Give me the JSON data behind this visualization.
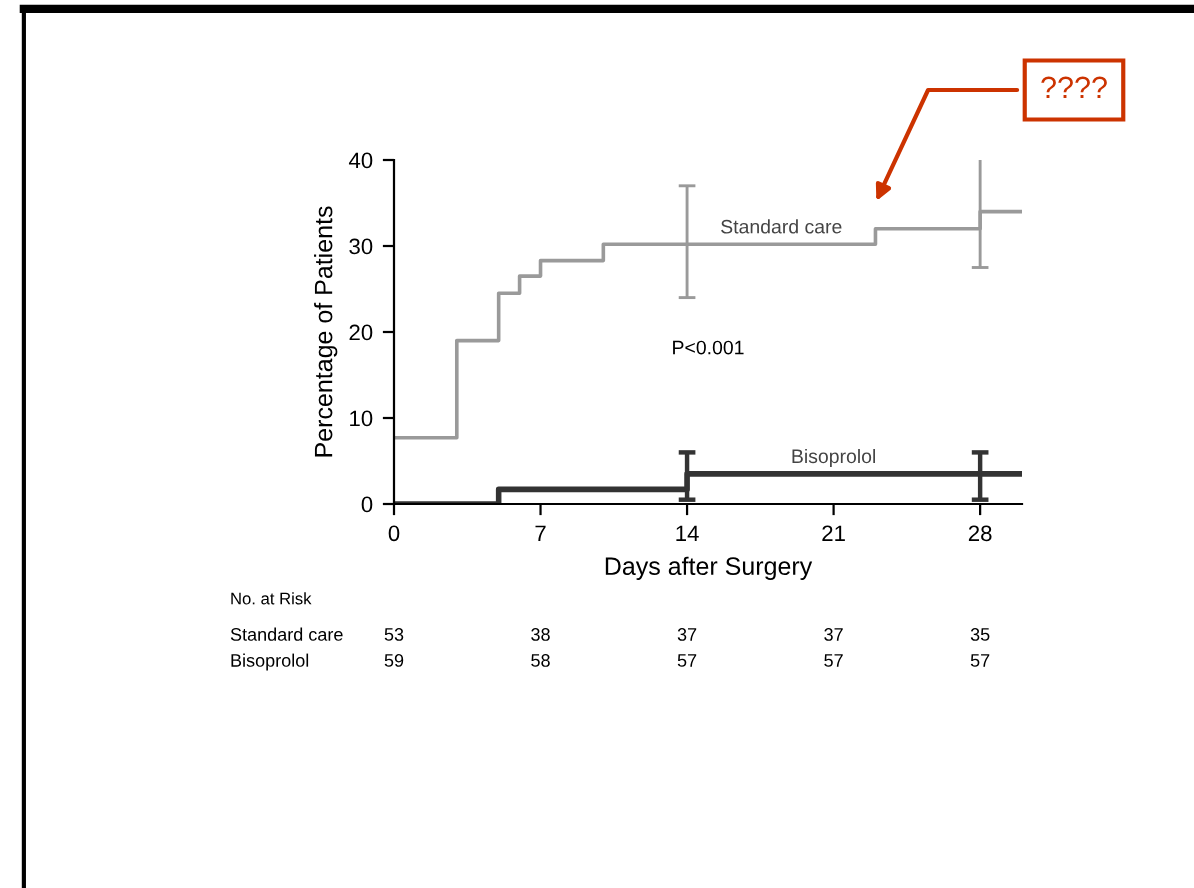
{
  "chart_data": {
    "type": "step",
    "xlabel": "Days after Surgery",
    "ylabel": "Percentage of Patients",
    "xlim": [
      0,
      30
    ],
    "xticks": [
      0,
      7,
      14,
      21,
      28
    ],
    "ylim": [
      0,
      40
    ],
    "yticks": [
      0,
      10,
      20,
      30,
      40
    ],
    "grid": false,
    "legend": false,
    "series": [
      {
        "name": "Standard care",
        "color": "#9a9a9a",
        "x": [
          0,
          3,
          5,
          6,
          7,
          10,
          14,
          23,
          28,
          30
        ],
        "values": [
          7.7,
          19,
          24.5,
          26.5,
          28.3,
          30.2,
          30.2,
          32,
          34,
          34
        ],
        "errors": [
          null,
          null,
          null,
          null,
          null,
          null,
          [
            24,
            37
          ],
          null,
          [
            27.5,
            40.5
          ],
          null
        ]
      },
      {
        "name": "Bisoprolol",
        "color": "#333333",
        "x": [
          0,
          5,
          14,
          28,
          30
        ],
        "values": [
          0,
          1.7,
          3.5,
          3.5,
          3.5
        ],
        "errors": [
          null,
          null,
          [
            0.5,
            6
          ],
          [
            0.5,
            6
          ],
          null
        ]
      }
    ],
    "annotations": [
      "P<0.001",
      "No. at Risk",
      "Standard care",
      "53",
      "38",
      "37",
      "37",
      "35",
      "Bisoprolol",
      "59",
      "58",
      "57",
      "57",
      "57",
      "????"
    ]
  }
}
